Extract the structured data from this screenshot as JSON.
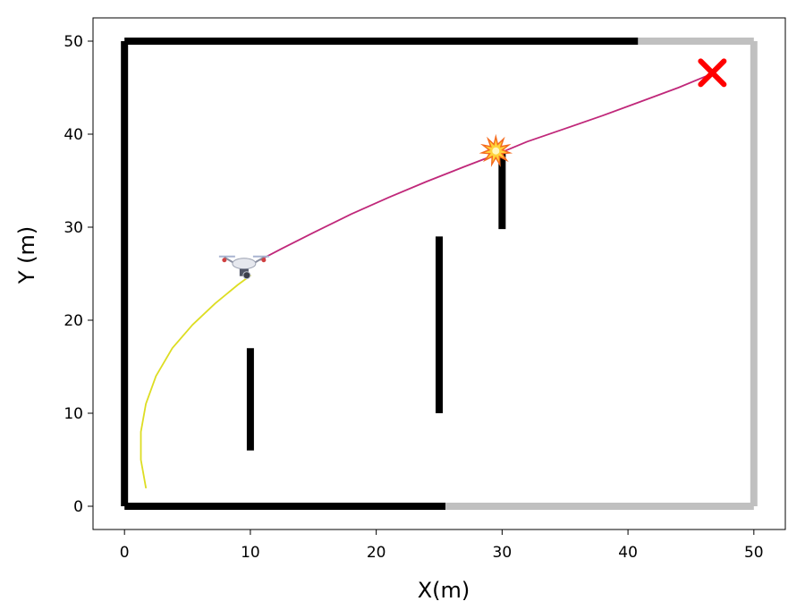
{
  "chart_data": {
    "type": "line",
    "xlabel": "X(m)",
    "ylabel": "Y (m)",
    "xlim": [
      -2.5,
      52.5
    ],
    "ylim": [
      -2.5,
      52.5
    ],
    "xticks": [
      "0",
      "10",
      "20",
      "30",
      "40",
      "50"
    ],
    "yticks": [
      "0",
      "10",
      "20",
      "30",
      "40",
      "50"
    ],
    "grid": false,
    "walls": [
      {
        "name": "wall-left",
        "x": [
          0,
          0
        ],
        "y": [
          0,
          50
        ],
        "color": "#000000"
      },
      {
        "name": "wall-top-dark",
        "x": [
          0,
          40.8
        ],
        "y": [
          50,
          50
        ],
        "color": "#000000"
      },
      {
        "name": "wall-top-light",
        "x": [
          40.8,
          50
        ],
        "y": [
          50,
          50
        ],
        "color": "#c0c0c0"
      },
      {
        "name": "wall-right",
        "x": [
          50,
          50
        ],
        "y": [
          0,
          50
        ],
        "color": "#c0c0c0"
      },
      {
        "name": "wall-bottom-dark",
        "x": [
          0,
          25.5
        ],
        "y": [
          0,
          0
        ],
        "color": "#000000"
      },
      {
        "name": "wall-bottom-light",
        "x": [
          25.5,
          50
        ],
        "y": [
          0,
          0
        ],
        "color": "#c0c0c0"
      },
      {
        "name": "obstacle-1",
        "x": [
          10,
          10
        ],
        "y": [
          6,
          17
        ],
        "color": "#000000"
      },
      {
        "name": "obstacle-2",
        "x": [
          25,
          25
        ],
        "y": [
          10,
          29
        ],
        "color": "#000000"
      },
      {
        "name": "obstacle-3",
        "x": [
          30,
          30
        ],
        "y": [
          29.8,
          38
        ],
        "color": "#000000"
      }
    ],
    "series": [
      {
        "color": "#dddd22",
        "x": [
          1.7,
          1.3,
          1.3,
          1.7,
          2.5,
          3.8,
          5.4,
          7.2,
          9.0,
          10.0
        ],
        "y": [
          2,
          5,
          8,
          11,
          14,
          17,
          19.5,
          21.8,
          23.8,
          24.8
        ]
      },
      {
        "color": "#c0287a",
        "x": [
          10.8,
          12.5,
          15,
          18,
          21,
          24,
          27,
          29.5,
          32,
          35,
          38,
          41,
          44,
          46.5
        ],
        "y": [
          26.5,
          27.7,
          29.4,
          31.4,
          33.2,
          34.9,
          36.5,
          37.8,
          39.2,
          40.6,
          42.0,
          43.5,
          45.0,
          46.4
        ]
      }
    ],
    "markers": {
      "drone": {
        "x": 9.5,
        "y": 25.7
      },
      "collision": {
        "x": 29.5,
        "y": 38.2
      },
      "goal": {
        "x": 46.7,
        "y": 46.6,
        "color": "#ff0000"
      }
    }
  }
}
